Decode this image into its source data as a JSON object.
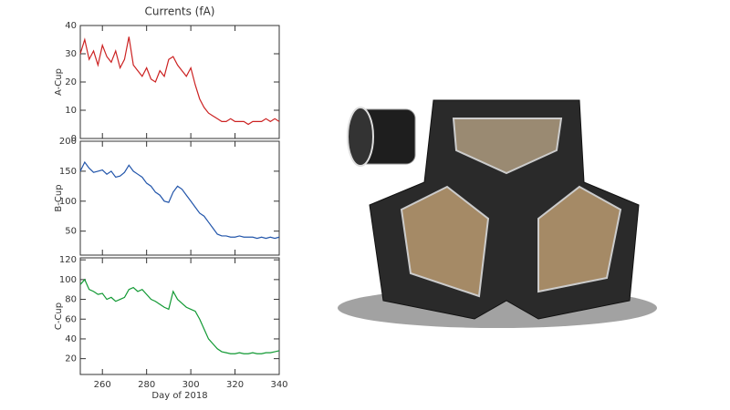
{
  "chart_data": [
    {
      "type": "line",
      "title": "Currents (fA)",
      "ylabel": "A-Cup",
      "color": "#cc2222",
      "x": [
        250,
        252,
        254,
        256,
        258,
        260,
        262,
        264,
        266,
        268,
        270,
        272,
        274,
        276,
        278,
        280,
        282,
        284,
        286,
        288,
        290,
        292,
        294,
        296,
        298,
        300,
        302,
        304,
        306,
        308,
        310,
        312,
        314,
        316,
        318,
        320,
        322,
        324,
        326,
        328,
        330,
        332,
        334,
        336,
        338,
        340
      ],
      "values": [
        30,
        35,
        28,
        31,
        26,
        33,
        29,
        27,
        31,
        25,
        28,
        36,
        26,
        24,
        22,
        25,
        21,
        20,
        24,
        22,
        28,
        29,
        26,
        24,
        22,
        25,
        19,
        14,
        11,
        9,
        8,
        7,
        6,
        6,
        7,
        6,
        6,
        6,
        5,
        6,
        6,
        6,
        7,
        6,
        7,
        6
      ],
      "xlim": [
        250,
        340
      ],
      "ylim": [
        0,
        40
      ],
      "yticks": [
        0,
        10,
        20,
        30,
        40
      ]
    },
    {
      "type": "line",
      "ylabel": "B-Cup",
      "color": "#2255aa",
      "x": [
        250,
        252,
        254,
        256,
        258,
        260,
        262,
        264,
        266,
        268,
        270,
        272,
        274,
        276,
        278,
        280,
        282,
        284,
        286,
        288,
        290,
        292,
        294,
        296,
        298,
        300,
        302,
        304,
        306,
        308,
        310,
        312,
        314,
        316,
        318,
        320,
        322,
        324,
        326,
        328,
        330,
        332,
        334,
        336,
        338,
        340
      ],
      "values": [
        150,
        165,
        155,
        148,
        150,
        152,
        145,
        150,
        140,
        142,
        148,
        160,
        150,
        145,
        140,
        130,
        125,
        115,
        110,
        100,
        98,
        115,
        125,
        120,
        110,
        100,
        90,
        80,
        75,
        65,
        55,
        45,
        42,
        42,
        40,
        40,
        42,
        40,
        40,
        40,
        38,
        40,
        38,
        40,
        38,
        40
      ],
      "xlim": [
        250,
        340
      ],
      "ylim": [
        10,
        200
      ],
      "yticks": [
        50,
        100,
        150,
        200
      ]
    },
    {
      "type": "line",
      "ylabel": "C-Cup",
      "xlabel": "Day of 2018",
      "color": "#119933",
      "x": [
        250,
        252,
        254,
        256,
        258,
        260,
        262,
        264,
        266,
        268,
        270,
        272,
        274,
        276,
        278,
        280,
        282,
        284,
        286,
        288,
        290,
        292,
        294,
        296,
        298,
        300,
        302,
        304,
        306,
        308,
        310,
        312,
        314,
        316,
        318,
        320,
        322,
        324,
        326,
        328,
        330,
        332,
        334,
        336,
        338,
        340
      ],
      "values": [
        95,
        100,
        90,
        88,
        85,
        86,
        80,
        82,
        78,
        80,
        82,
        90,
        92,
        88,
        90,
        85,
        80,
        78,
        75,
        72,
        70,
        88,
        80,
        76,
        72,
        70,
        68,
        60,
        50,
        40,
        35,
        30,
        27,
        26,
        25,
        25,
        26,
        25,
        25,
        26,
        25,
        25,
        26,
        26,
        27,
        28
      ],
      "xlim": [
        250,
        340
      ],
      "ylim": [
        4,
        122
      ],
      "yticks": [
        20,
        40,
        60,
        80,
        100,
        120
      ],
      "xticks": [
        260,
        280,
        300,
        320,
        340
      ]
    }
  ]
}
